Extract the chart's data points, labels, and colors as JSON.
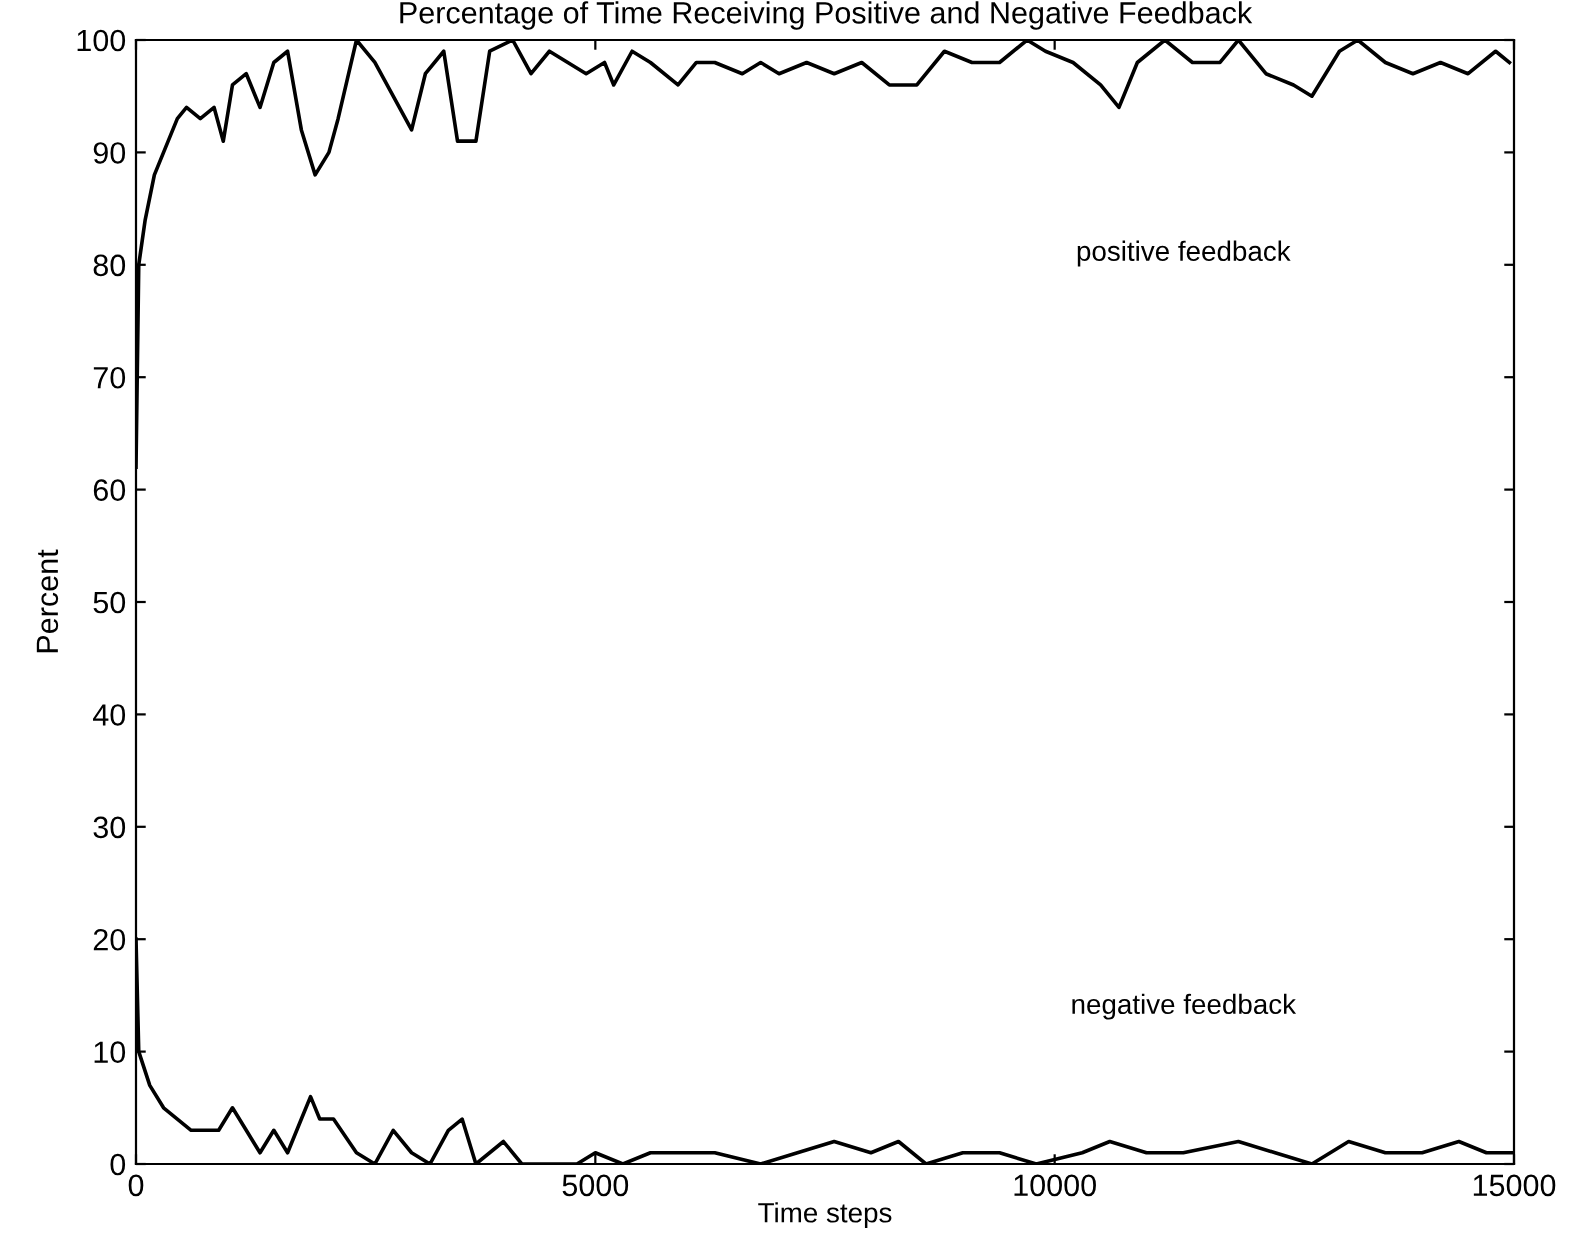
{
  "chart_data": {
    "type": "line",
    "title": "Percentage of Time Receiving Positive and Negative Feedback",
    "xlabel": "Time steps",
    "ylabel": "Percent",
    "xlim": [
      0,
      15000
    ],
    "ylim": [
      0,
      100
    ],
    "xticks": [
      0,
      5000,
      10000,
      15000
    ],
    "yticks": [
      0,
      10,
      20,
      30,
      40,
      50,
      60,
      70,
      80,
      90,
      100
    ],
    "grid": false,
    "legend": false,
    "marker": "none",
    "line_style": "solid",
    "series": [
      {
        "color": "#000000",
        "x": [
          0,
          30,
          100,
          200,
          300,
          450,
          550,
          700,
          850,
          950,
          1050,
          1200,
          1350,
          1500,
          1650,
          1800,
          1950,
          2100,
          2200,
          2400,
          2600,
          2800,
          3000,
          3150,
          3350,
          3500,
          3700,
          3850,
          4100,
          4300,
          4500,
          4700,
          4900,
          5100,
          5200,
          5400,
          5600,
          5900,
          6100,
          6300,
          6600,
          6800,
          7000,
          7300,
          7600,
          7900,
          8200,
          8500,
          8800,
          9100,
          9400,
          9700,
          9900,
          10200,
          10500,
          10700,
          10900,
          11200,
          11500,
          11800,
          12000,
          12300,
          12600,
          12800,
          13100,
          13300,
          13600,
          13900,
          14200,
          14500,
          14800,
          14950
        ],
        "values": [
          62,
          80,
          84,
          88,
          90,
          93,
          94,
          93,
          94,
          91,
          96,
          97,
          94,
          98,
          99,
          92,
          88,
          90,
          93,
          100,
          98,
          95,
          92,
          97,
          99,
          91,
          91,
          99,
          100,
          97,
          99,
          98,
          97,
          98,
          96,
          99,
          98,
          96,
          98,
          98,
          97,
          98,
          97,
          98,
          97,
          98,
          96,
          96,
          99,
          98,
          98,
          100,
          99,
          98,
          96,
          94,
          98,
          100,
          98,
          98,
          100,
          97,
          96,
          95,
          99,
          100,
          98,
          97,
          98,
          97,
          99,
          98
        ]
      },
      {
        "color": "#000000",
        "x": [
          0,
          30,
          150,
          300,
          450,
          600,
          900,
          1050,
          1200,
          1350,
          1500,
          1650,
          1800,
          1900,
          2000,
          2150,
          2400,
          2600,
          2800,
          3000,
          3200,
          3400,
          3550,
          3700,
          4000,
          4200,
          4800,
          5000,
          5300,
          5600,
          6000,
          6300,
          6800,
          7200,
          7600,
          8000,
          8300,
          8600,
          9000,
          9400,
          9800,
          10300,
          10600,
          11000,
          11400,
          12000,
          12400,
          12800,
          13200,
          13600,
          14000,
          14400,
          14700,
          15000
        ],
        "values": [
          20,
          10,
          7,
          5,
          4,
          3,
          3,
          5,
          3,
          1,
          3,
          1,
          4,
          6,
          4,
          4,
          1,
          0,
          3,
          1,
          0,
          3,
          4,
          0,
          2,
          0,
          0,
          1,
          0,
          1,
          1,
          1,
          0,
          1,
          2,
          1,
          2,
          0,
          1,
          1,
          0,
          1,
          2,
          1,
          1,
          2,
          1,
          0,
          2,
          1,
          1,
          2,
          1,
          1
        ]
      }
    ],
    "annotations": [
      "positive feedback",
      "negative feedback"
    ]
  }
}
